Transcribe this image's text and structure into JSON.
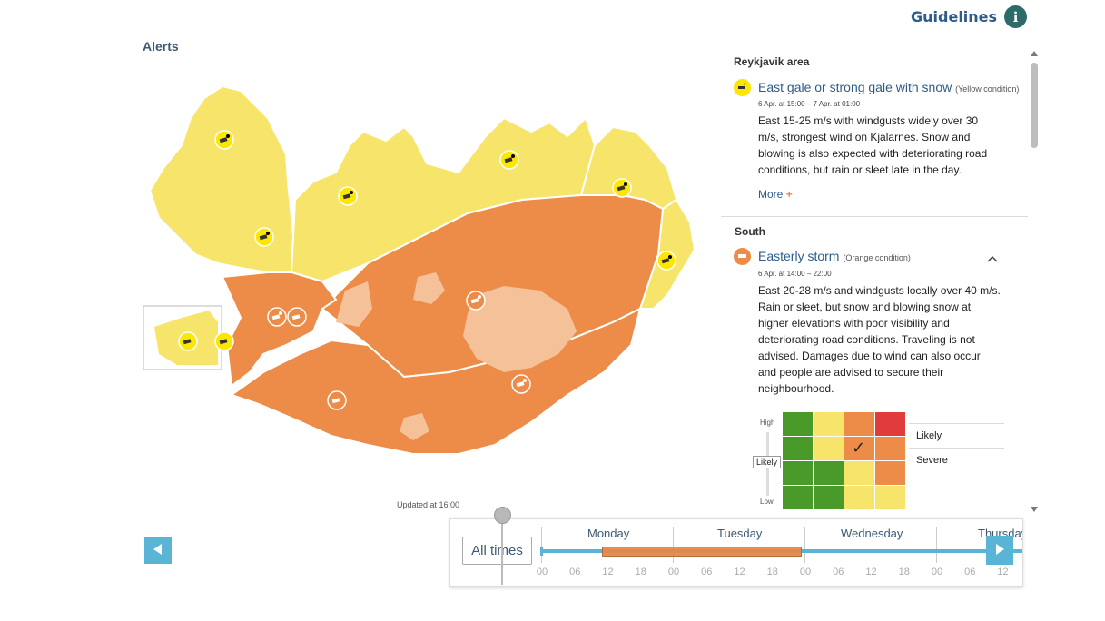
{
  "header": {
    "guidelines_label": "Guidelines",
    "info_symbol": "i"
  },
  "alerts_title": "Alerts",
  "updated_text": "Updated at 16:00",
  "colors": {
    "yellow": "#f7e56b",
    "orange": "#ec8c48",
    "ice": "#f4c199",
    "accent": "#5ab4d6",
    "title_blue": "#2e5c8a"
  },
  "map_icons": [
    {
      "name": "wind-snow-icon",
      "level": "yellow"
    },
    {
      "name": "wind-snow-icon",
      "level": "yellow"
    },
    {
      "name": "wind-snow-icon",
      "level": "yellow"
    },
    {
      "name": "wind-snow-icon",
      "level": "yellow"
    },
    {
      "name": "wind-snow-icon",
      "level": "yellow"
    },
    {
      "name": "wind-snow-icon",
      "level": "yellow"
    },
    {
      "name": "wind-icon",
      "level": "yellow"
    },
    {
      "name": "wind-snow-icon",
      "level": "orange"
    },
    {
      "name": "wind-icon",
      "level": "orange"
    },
    {
      "name": "wind-snow-icon",
      "level": "orange"
    },
    {
      "name": "wind-snow-icon",
      "level": "orange"
    },
    {
      "name": "wind-icon",
      "level": "orange"
    },
    {
      "name": "wind-icon",
      "level": "yellow"
    }
  ],
  "alerts": [
    {
      "region": "Reykjavik area",
      "title": "East gale or strong gale with snow",
      "condition": "(Yellow condition)",
      "time": "6 Apr. at 15:00 – 7 Apr. at 01:00",
      "text": "East 15-25 m/s with windgusts widely over 30 m/s, strongest wind on Kjalarnes. Snow and blowing is also expected with deteriorating road conditions, but rain or sleet late in the day.",
      "more_label": "More",
      "more_symbol": "+",
      "icon": "wind-snow-icon"
    },
    {
      "region": "South",
      "title": "Easterly storm",
      "condition": "(Orange condition)",
      "time": "6 Apr. at 14:00 – 22:00",
      "text": "East 20-28 m/s and windgusts locally over 40 m/s. Rain or sleet, but snow and blowing snow at higher elevations with poor visibility and deteriorating road conditions. Traveling is not advised. Damages due to wind can also occur and people are advised to secure their neighbourhood.",
      "icon": "wind-icon"
    }
  ],
  "risk_matrix": {
    "y_high": "High",
    "y_low": "Low",
    "likelihood_button": "Likely",
    "likelihood": "Likely",
    "impact": "Severe",
    "cells": [
      [
        "green",
        "yellow",
        "orange",
        "red"
      ],
      [
        "green",
        "yellow",
        "orange",
        "orange"
      ],
      [
        "green",
        "green",
        "yellow",
        "orange"
      ],
      [
        "green",
        "green",
        "yellow",
        "yellow"
      ]
    ],
    "checked_row": 1,
    "checked_col": 2,
    "check_symbol": "✓"
  },
  "timeline": {
    "all_times_label": "All times",
    "days": [
      "Monday",
      "Tuesday",
      "Wednesday",
      "Thursday"
    ],
    "hours": [
      "00",
      "06",
      "12",
      "18",
      "00",
      "06",
      "12",
      "18",
      "00",
      "06",
      "12",
      "18",
      "00",
      "06",
      "12"
    ]
  }
}
